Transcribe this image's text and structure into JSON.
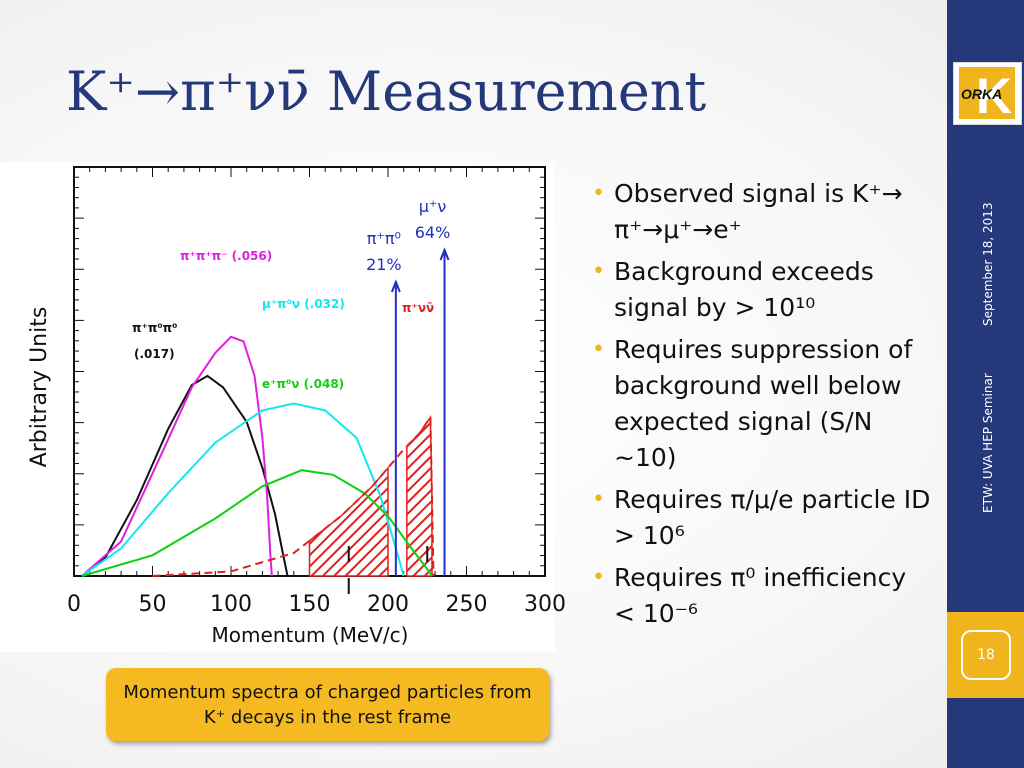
{
  "slide": {
    "title": "K⁺→π⁺νν̄ Measurement",
    "logo_text": "ORKA",
    "logo_letter": "K",
    "side_date": "September 18, 2013",
    "side_event": "ETW: UVA HEP Seminar",
    "slide_number": "18",
    "caption": "Momentum spectra of charged particles from K⁺ decays in the rest frame",
    "bullets": [
      "Observed signal is K⁺→ π⁺→μ⁺→e⁺",
      "Background exceeds signal by > 10¹⁰",
      "Requires suppression of background well below expected signal (S/N ~10)",
      "Requires π/μ/e particle ID > 10⁶",
      "Requires π⁰ inefficiency < 10⁻⁶"
    ]
  },
  "colors": {
    "navy": "#24387a",
    "gold": "#f0b41c",
    "caption_fill": "#f5b921",
    "pi_pi0_pi0": "#111111",
    "pi_pi_pi": "#e020e0",
    "mu_pi0_nu": "#10e8f0",
    "e_pi0_nu": "#10d010",
    "pi_nu_nu": "#e02020",
    "arrows": "#2030c0"
  },
  "chart_data": {
    "type": "line",
    "xlabel": "Momentum (MeV/c)",
    "ylabel": "Arbitrary Units",
    "xlim": [
      0,
      300
    ],
    "x_ticks": [
      "0",
      "50",
      "100",
      "150",
      "200",
      "250",
      "300"
    ],
    "series": [
      {
        "name": "π⁺π⁰π⁰ (.017)",
        "color": "#111111",
        "style": "solid",
        "points": [
          [
            5,
            0
          ],
          [
            20,
            8
          ],
          [
            40,
            33
          ],
          [
            60,
            64
          ],
          [
            75,
            83
          ],
          [
            85,
            87
          ],
          [
            95,
            82
          ],
          [
            110,
            67
          ],
          [
            120,
            47
          ],
          [
            128,
            27
          ],
          [
            133,
            10
          ],
          [
            136,
            0
          ]
        ]
      },
      {
        "name": "π⁺π⁺π⁻ (.056)",
        "color": "#e020e0",
        "style": "solid",
        "points": [
          [
            5,
            0
          ],
          [
            30,
            15
          ],
          [
            55,
            52
          ],
          [
            75,
            82
          ],
          [
            90,
            97
          ],
          [
            100,
            104
          ],
          [
            108,
            102
          ],
          [
            115,
            87
          ],
          [
            120,
            60
          ],
          [
            123,
            35
          ],
          [
            125,
            10
          ],
          [
            126,
            0
          ]
        ]
      },
      {
        "name": "μ⁺π⁰ν (.032)",
        "color": "#10e8f0",
        "style": "solid",
        "points": [
          [
            5,
            0
          ],
          [
            30,
            12
          ],
          [
            60,
            36
          ],
          [
            90,
            58
          ],
          [
            120,
            72
          ],
          [
            140,
            75
          ],
          [
            160,
            72
          ],
          [
            180,
            60
          ],
          [
            195,
            35
          ],
          [
            205,
            12
          ],
          [
            210,
            0
          ]
        ]
      },
      {
        "name": "e⁺π⁰ν (.048)",
        "color": "#10d010",
        "style": "solid",
        "points": [
          [
            5,
            0
          ],
          [
            50,
            9
          ],
          [
            90,
            25
          ],
          [
            120,
            39
          ],
          [
            145,
            46
          ],
          [
            165,
            44
          ],
          [
            185,
            36
          ],
          [
            200,
            26
          ],
          [
            215,
            12
          ],
          [
            225,
            3
          ],
          [
            228,
            0
          ]
        ]
      },
      {
        "name": "π⁺νν̄",
        "color": "#e02020",
        "style": "dashed",
        "points": [
          [
            50,
            0
          ],
          [
            100,
            2
          ],
          [
            140,
            10
          ],
          [
            170,
            26
          ],
          [
            190,
            39
          ],
          [
            210,
            55
          ],
          [
            220,
            62
          ],
          [
            227,
            69
          ],
          [
            229,
            0
          ]
        ]
      }
    ],
    "annotations": [
      {
        "text": "π⁺π⁺π⁻",
        "value": "(.056)",
        "color": "#e020e0"
      },
      {
        "text": "π⁺π⁰π⁰",
        "value": "(.017)",
        "color": "#111111"
      },
      {
        "text": "μ⁺π⁰ν",
        "value": "(.032)",
        "color": "#10e8f0"
      },
      {
        "text": "e⁺π⁰ν",
        "value": "(.048)",
        "color": "#10d010"
      },
      {
        "text": "π⁺νν̄",
        "color": "#e02020"
      }
    ],
    "signal_regions_mev": [
      [
        150,
        200
      ],
      [
        212,
        228
      ]
    ],
    "arrows": [
      {
        "x": 205,
        "label": "π⁺π⁰",
        "percent": "21%"
      },
      {
        "x": 236,
        "label": "μ⁺ν",
        "percent": "64%"
      }
    ],
    "cut_markers_mev": [
      175,
      225
    ]
  }
}
